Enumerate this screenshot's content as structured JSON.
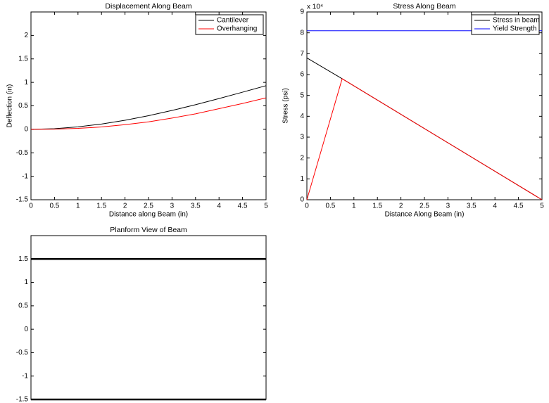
{
  "chart_data": [
    {
      "type": "line",
      "title": "Displacement Along Beam",
      "xlabel": "Distance along Beam (in)",
      "ylabel": "Deflection (in)",
      "xlim": [
        0,
        5
      ],
      "xticks": [
        0,
        0.5,
        1,
        1.5,
        2,
        2.5,
        3,
        3.5,
        4,
        4.5,
        5
      ],
      "ylim": [
        -1.5,
        2.5
      ],
      "yticks": [
        -1.5,
        -1,
        -0.5,
        0,
        0.5,
        1,
        1.5,
        2
      ],
      "legend": "northeast",
      "series": [
        {
          "name": "Cantilever",
          "color": "#000000",
          "x": [
            0,
            0.5,
            1,
            1.5,
            2,
            2.5,
            3,
            3.5,
            4,
            4.5,
            5
          ],
          "values": [
            0,
            0.013,
            0.052,
            0.113,
            0.193,
            0.291,
            0.402,
            0.524,
            0.655,
            0.791,
            0.93
          ]
        },
        {
          "name": "Overhanging",
          "color": "#ff0000",
          "x": [
            0,
            0.5,
            1,
            1.5,
            2,
            2.5,
            3,
            3.5,
            4,
            4.5,
            5
          ],
          "values": [
            0,
            0.003,
            0.02,
            0.05,
            0.1,
            0.16,
            0.24,
            0.33,
            0.44,
            0.55,
            0.67
          ]
        }
      ]
    },
    {
      "type": "line",
      "title": "Stress Along Beam",
      "xlabel": "Distance Along Beam (in)",
      "ylabel": "Stress (psi)",
      "exponent_label": "x 10⁴",
      "xlim": [
        0,
        5
      ],
      "xticks": [
        0,
        0.5,
        1,
        1.5,
        2,
        2.5,
        3,
        3.5,
        4,
        4.5,
        5
      ],
      "ylim": [
        0,
        90000
      ],
      "yticks": [
        {
          "value": 0,
          "label": "0"
        },
        {
          "value": 10000,
          "label": "1"
        },
        {
          "value": 20000,
          "label": "2"
        },
        {
          "value": 30000,
          "label": "3"
        },
        {
          "value": 40000,
          "label": "4"
        },
        {
          "value": 50000,
          "label": "5"
        },
        {
          "value": 60000,
          "label": "6"
        },
        {
          "value": 70000,
          "label": "7"
        },
        {
          "value": 80000,
          "label": "8"
        },
        {
          "value": 90000,
          "label": "9"
        }
      ],
      "legend": "northeast",
      "series": [
        {
          "name": "Stress in beam",
          "color": "#000000",
          "x": [
            0,
            0.75,
            5
          ],
          "values": [
            68000,
            58000,
            0
          ]
        },
        {
          "name": "Yield Strength",
          "color": "#0000ff",
          "x": [
            0,
            5
          ],
          "values": [
            81000,
            81000
          ]
        },
        {
          "color": "#ff0000",
          "x": [
            0,
            0.75,
            5
          ],
          "values": [
            0,
            58000,
            0
          ]
        }
      ]
    },
    {
      "type": "line",
      "title": "Planform View of Beam",
      "xlim": [
        0,
        5
      ],
      "ylim": [
        -1.5,
        2
      ],
      "yticks": [
        -1.5,
        -1,
        -0.5,
        0,
        0.5,
        1,
        1.5
      ],
      "series": [
        {
          "color": "#000000",
          "width": 2.5,
          "x": [
            0,
            5
          ],
          "values": [
            1.5,
            1.5
          ]
        },
        {
          "color": "#000000",
          "width": 2.5,
          "x": [
            0,
            5
          ],
          "values": [
            -1.5,
            -1.5
          ]
        }
      ]
    }
  ]
}
